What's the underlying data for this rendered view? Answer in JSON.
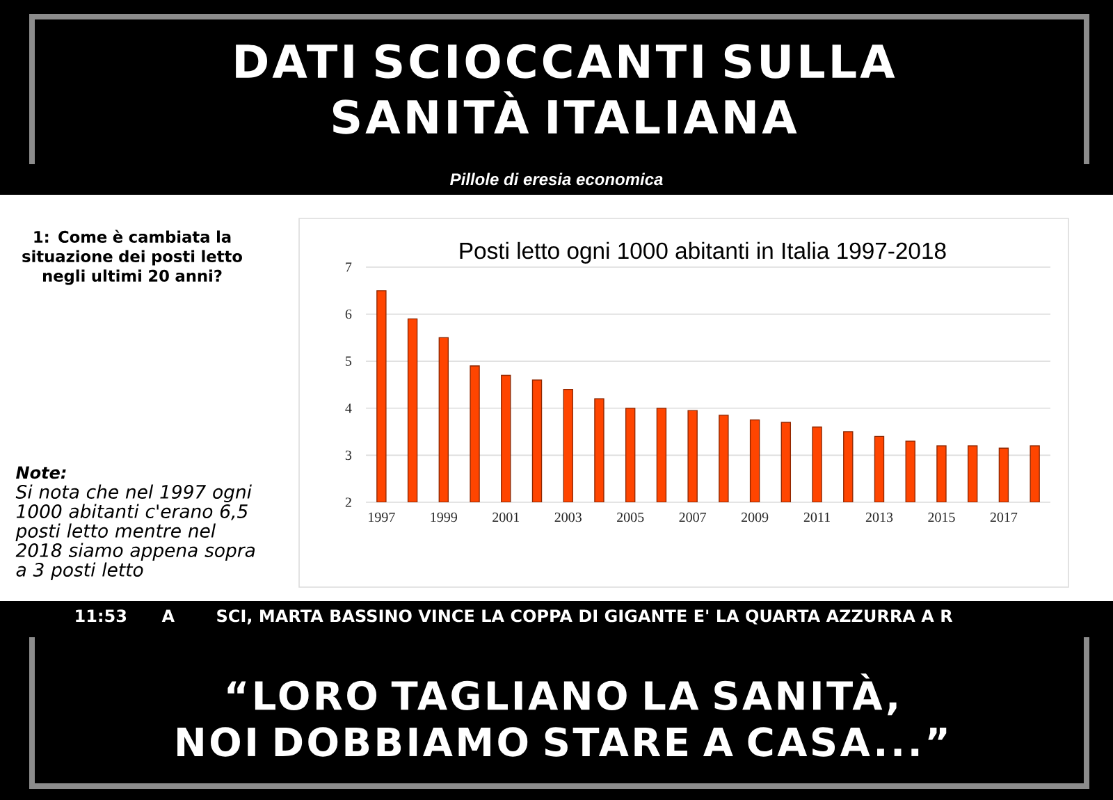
{
  "chart_data": {
    "type": "bar",
    "title": "Posti letto ogni 1000 abitanti in Italia 1997-2018",
    "categories": [
      "1997",
      null,
      "1999",
      null,
      "2001",
      null,
      "2003",
      null,
      "2005",
      null,
      "2007",
      null,
      "2009",
      null,
      "2011",
      null,
      "2013",
      null,
      "2015",
      null,
      "2017",
      null
    ],
    "values": [
      6.5,
      5.9,
      5.5,
      4.9,
      4.7,
      4.6,
      4.4,
      4.2,
      4.0,
      4.0,
      3.95,
      3.85,
      3.75,
      3.7,
      3.6,
      3.5,
      3.4,
      3.3,
      3.2,
      3.2,
      3.15,
      3.2
    ],
    "color": "#ff4500",
    "ylim": [
      2,
      7
    ],
    "yticks": [
      2,
      3,
      4,
      5,
      6,
      7
    ],
    "grid": "y",
    "annotations": [
      "DATI SCIOCCANTI SULLA SANITÀ ITALIANA",
      "Pillole di eresia economica",
      "1: Come è cambiata la situazione dei posti letto negli ultimi 20 anni?",
      "Note:",
      "Si nota che nel 1997 ogni 1000 abitanti c'erano 6,5 posti letto mentre nel 2018 siamo appena sopra a 3 posti letto",
      "11:53",
      "A",
      "SCI, MARTA BASSINO VINCE LA COPPA DI GIGANTE E' LA QUARTA AZZURRA A R",
      "“LORO TAGLIANO LA SANITÀ, NOI DOBBIAMO STARE A CASA...”"
    ]
  }
}
